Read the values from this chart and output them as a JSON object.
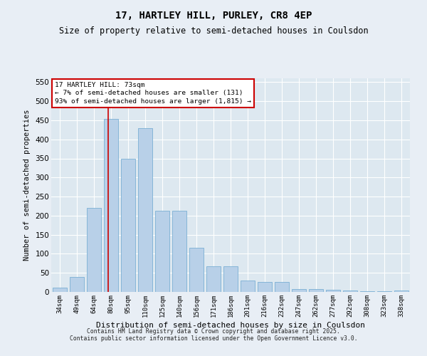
{
  "title1": "17, HARTLEY HILL, PURLEY, CR8 4EP",
  "title2": "Size of property relative to semi-detached houses in Coulsdon",
  "xlabel": "Distribution of semi-detached houses by size in Coulsdon",
  "ylabel": "Number of semi-detached properties",
  "categories": [
    "34sqm",
    "49sqm",
    "64sqm",
    "80sqm",
    "95sqm",
    "110sqm",
    "125sqm",
    "140sqm",
    "156sqm",
    "171sqm",
    "186sqm",
    "201sqm",
    "216sqm",
    "232sqm",
    "247sqm",
    "262sqm",
    "277sqm",
    "292sqm",
    "308sqm",
    "323sqm",
    "338sqm"
  ],
  "values": [
    11,
    40,
    220,
    453,
    350,
    430,
    213,
    213,
    115,
    68,
    68,
    29,
    27,
    27,
    8,
    7,
    5,
    3,
    1,
    1,
    4
  ],
  "bar_color": "#b8d0e8",
  "bar_edge_color": "#7aafd4",
  "vline_color": "#cc0000",
  "vline_x_index": 2.85,
  "annotation_title": "17 HARTLEY HILL: 73sqm",
  "annotation_line1": "← 7% of semi-detached houses are smaller (131)",
  "annotation_line2": "93% of semi-detached houses are larger (1,815) →",
  "annotation_box_color": "#cc0000",
  "ylim": [
    0,
    560
  ],
  "yticks": [
    0,
    50,
    100,
    150,
    200,
    250,
    300,
    350,
    400,
    450,
    500,
    550
  ],
  "plot_bg_color": "#dde8f0",
  "fig_bg_color": "#e8eef5",
  "footer1": "Contains HM Land Registry data © Crown copyright and database right 2025.",
  "footer2": "Contains public sector information licensed under the Open Government Licence v3.0."
}
